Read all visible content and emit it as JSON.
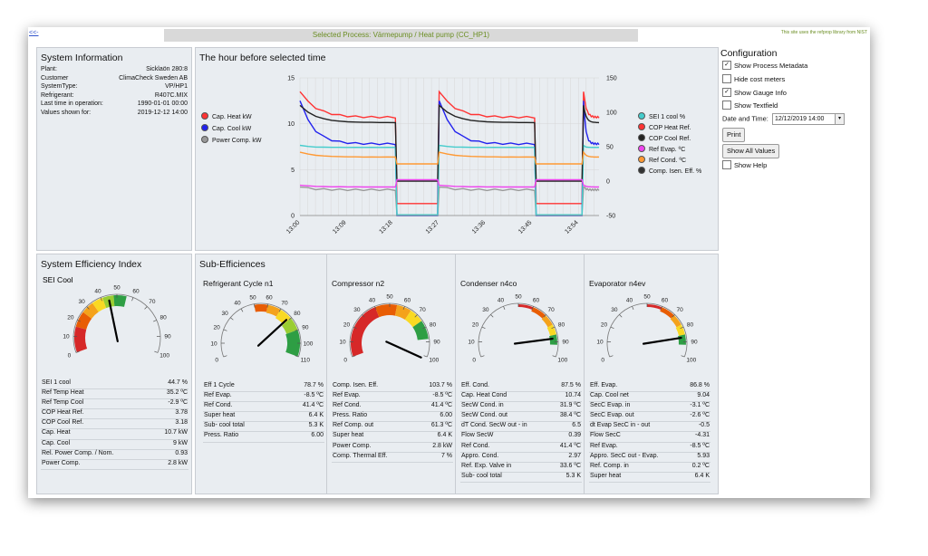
{
  "header": {
    "back_link": "<<-",
    "selected_process": "Selected Process: Värmepump / Heat pump (CC_HP1)",
    "refprop_note": "This site uses the refprop library from NIST"
  },
  "system_info": {
    "title": "System Information",
    "rows": [
      {
        "label": "Plant:",
        "value": "Sicklaön 280:8"
      },
      {
        "label": "Customer",
        "value": "ClimaCheck Sweden AB"
      },
      {
        "label": "SystemType:",
        "value": "VP/HP1"
      },
      {
        "label": "Refrigerant:",
        "value": "R407C.MIX"
      },
      {
        "label": "Last time in operation:",
        "value": "1990-01-01 00:00"
      },
      {
        "label": "Values shown for:",
        "value": "2019-12-12 14:00"
      }
    ]
  },
  "chart_panel": {
    "title": "The hour before selected time"
  },
  "chart_data": {
    "type": "line",
    "x_ticks": [
      "13:00",
      "13:09",
      "13:18",
      "13:27",
      "13:36",
      "13:45",
      "13:54"
    ],
    "y_left_ticks": [
      "0",
      "5",
      "10",
      "15"
    ],
    "y_right_ticks": [
      "-50",
      "0",
      "50",
      "100",
      "150"
    ],
    "y_left_range": [
      0,
      15
    ],
    "y_right_range": [
      -50,
      150
    ],
    "x_minutes": [
      0,
      9,
      18,
      27,
      36,
      45,
      54
    ],
    "left_legend": [
      {
        "name": "Cap. Heat kW",
        "color": "#ff3333"
      },
      {
        "name": "Cap. Cool kW",
        "color": "#2222ee"
      },
      {
        "name": "Power Comp. kW",
        "color": "#999999"
      }
    ],
    "right_legend": [
      {
        "name": "SEI 1 cool %",
        "color": "#44cccc"
      },
      {
        "name": "COP Heat Ref.",
        "color": "#ff3333"
      },
      {
        "name": "COP Cool Ref.",
        "color": "#222222"
      },
      {
        "name": "Ref Evap. ºC",
        "color": "#ee44ee"
      },
      {
        "name": "Ref Cond. ºC",
        "color": "#ff9933"
      },
      {
        "name": "Comp. Isen. Eff. %",
        "color": "#333333"
      }
    ],
    "grid": true
  },
  "config": {
    "title": "Configuration",
    "checkboxes": [
      {
        "label": "Show Process Metadata",
        "checked": true
      },
      {
        "label": "Hide cost meters",
        "checked": false
      },
      {
        "label": "Show Gauge Info",
        "checked": true
      },
      {
        "label": "Show Textfield",
        "checked": false
      }
    ],
    "date_label": "Date and Time:",
    "date_value": "12/12/2019 14:00",
    "print_label": "Print",
    "show_all_label": "Show All Values",
    "show_help_label": "Show Help",
    "show_help_checked": false
  },
  "sei_panel": {
    "title": "System Efficiency Index",
    "gauge_title": "SEI Cool",
    "gauge_value": 44.7,
    "gauge_ticks": [
      "0",
      "10",
      "20",
      "30",
      "40",
      "50",
      "60",
      "70",
      "80",
      "90",
      "100"
    ],
    "rows": [
      {
        "label": "SEI 1 cool",
        "value": "44.7 %"
      },
      {
        "label": "Ref Temp Heat",
        "value": "35.2 ºC"
      },
      {
        "label": "Ref Temp Cool",
        "value": "-2.9 ºC"
      },
      {
        "label": "COP Heat Ref.",
        "value": "3.78"
      },
      {
        "label": "COP Cool Ref.",
        "value": "3.18"
      },
      {
        "label": "Cap. Heat",
        "value": "10.7 kW"
      },
      {
        "label": "Cap. Cool",
        "value": "9 kW"
      },
      {
        "label": "Rel. Power Comp. / Nom.",
        "value": "0.93"
      },
      {
        "label": "Power Comp.",
        "value": "2.8 kW"
      }
    ]
  },
  "sub_eff": {
    "title": "Sub-Efficiences",
    "columns": [
      {
        "title": "Refrigerant Cycle n1",
        "gauge_value": 78.7,
        "gauge_ticks": [
          "0",
          "10",
          "20",
          "30",
          "40",
          "50",
          "60",
          "70",
          "80",
          "90",
          "100",
          "110"
        ],
        "rows": [
          {
            "label": "Eff 1 Cycle",
            "value": "78.7 %"
          },
          {
            "label": "Ref Evap.",
            "value": "-8.5 ºC"
          },
          {
            "label": "Ref Cond.",
            "value": "41.4 ºC"
          },
          {
            "label": "Super heat",
            "value": "6.4 K"
          },
          {
            "label": "Sub- cool total",
            "value": "5.3 K"
          },
          {
            "label": "Press. Ratio",
            "value": "6.00"
          }
        ]
      },
      {
        "title": "Compressor n2",
        "gauge_value": 103.7,
        "gauge_ticks": [
          "0",
          "10",
          "20",
          "30",
          "40",
          "50",
          "60",
          "70",
          "80",
          "90",
          "100"
        ],
        "rows": [
          {
            "label": "Comp. Isen. Eff.",
            "value": "103.7 %"
          },
          {
            "label": "Ref Evap.",
            "value": "-8.5 ºC"
          },
          {
            "label": "Ref Cond.",
            "value": "41.4 ºC"
          },
          {
            "label": "Press. Ratio",
            "value": "6.00"
          },
          {
            "label": "Ref Comp. out",
            "value": "61.3 ºC"
          },
          {
            "label": "Super heat",
            "value": "6.4 K"
          },
          {
            "label": "Power Comp.",
            "value": "2.8 kW"
          },
          {
            "label": "Comp. Thermal Eff.",
            "value": "7 %"
          }
        ]
      },
      {
        "title": "Condenser n4co",
        "gauge_value": 87.5,
        "gauge_ticks": [
          "0",
          "10",
          "20",
          "30",
          "40",
          "50",
          "60",
          "70",
          "80",
          "90",
          "100"
        ],
        "rows": [
          {
            "label": "Eff. Cond.",
            "value": "87.5 %"
          },
          {
            "label": "Cap. Heat Cond",
            "value": "10.74"
          },
          {
            "label": "SecW Cond. in",
            "value": "31.9 ºC"
          },
          {
            "label": "SecW Cond. out",
            "value": "38.4 ºC"
          },
          {
            "label": "dT Cond. SecW out - in",
            "value": "6.5"
          },
          {
            "label": "Flow SecW",
            "value": "0.39"
          },
          {
            "label": "Ref Cond.",
            "value": "41.4 ºC"
          },
          {
            "label": "Appro. Cond.",
            "value": "2.97"
          },
          {
            "label": "Ref. Exp. Valve in",
            "value": "33.6 ºC"
          },
          {
            "label": "Sub- cool total",
            "value": "5.3 K"
          }
        ]
      },
      {
        "title": "Evaporator n4ev",
        "gauge_value": 86.8,
        "gauge_ticks": [
          "0",
          "10",
          "20",
          "30",
          "40",
          "50",
          "60",
          "70",
          "80",
          "90",
          "100"
        ],
        "rows": [
          {
            "label": "Eff. Evap.",
            "value": "86.8 %"
          },
          {
            "label": "Cap. Cool net",
            "value": "9.04"
          },
          {
            "label": "SecC Evap. in",
            "value": "-3.1 ºC"
          },
          {
            "label": "SecC Evap. out",
            "value": "-2.6 ºC"
          },
          {
            "label": "dt Evap SecC in - out",
            "value": "-0.5"
          },
          {
            "label": "Flow SecC",
            "value": "-4.31"
          },
          {
            "label": "Ref Evap.",
            "value": "-8.5 ºC"
          },
          {
            "label": "Appro. SecC out - Evap.",
            "value": "5.93"
          },
          {
            "label": "Ref. Comp. in",
            "value": "0.2 ºC"
          },
          {
            "label": "Super heat",
            "value": "6.4 K"
          }
        ]
      }
    ]
  }
}
